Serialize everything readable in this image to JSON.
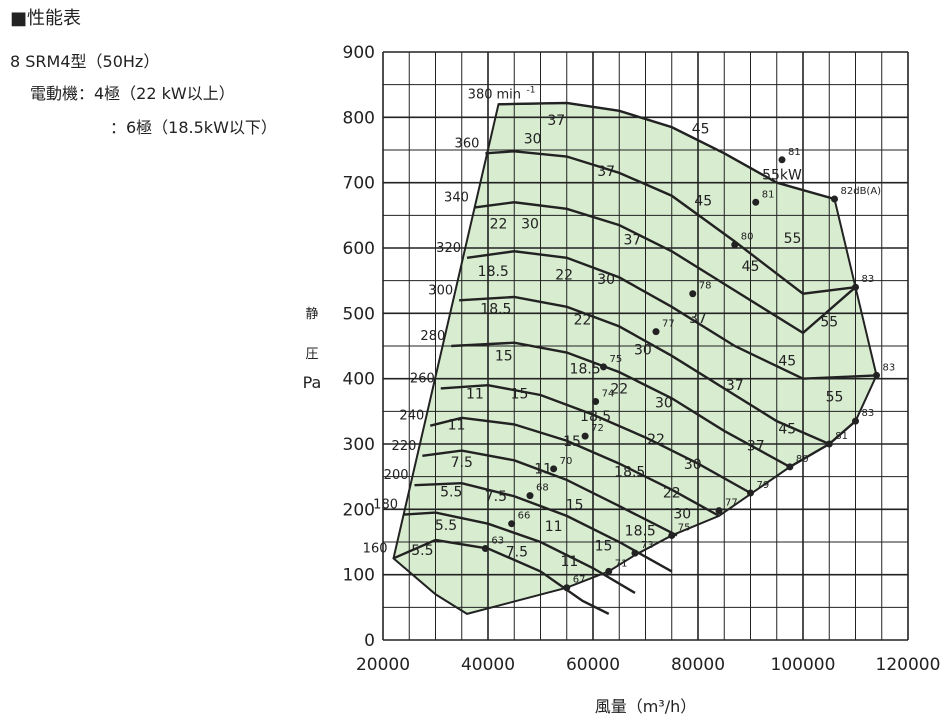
{
  "header": {
    "section": "■性能表",
    "model": "8  SRM4型（50Hz）",
    "motor_label": "電動機：4極（22  kW以上）",
    "motor_label2": "：6極（18.5kW以下）"
  },
  "chart_data": {
    "type": "line",
    "title": "",
    "xlabel": "風量（m³/h）",
    "ylabel_chars": [
      "静",
      "圧",
      "Pa"
    ],
    "xlim": [
      20000,
      120000
    ],
    "ylim": [
      0,
      900
    ],
    "x_ticks": [
      "20000",
      "40000",
      "60000",
      "80000",
      "100000",
      "120000"
    ],
    "y_ticks": [
      "0",
      "100",
      "200",
      "300",
      "400",
      "500",
      "600",
      "700",
      "800",
      "900"
    ],
    "grid": true,
    "fill_color": "#d8ecd0",
    "speed_unit": "min",
    "speed_unit_sup": "-1",
    "speed_curves": [
      {
        "label": "160",
        "points": [
          [
            22000,
            125
          ],
          [
            30000,
            153
          ],
          [
            40000,
            140
          ],
          [
            50000,
            105
          ],
          [
            58000,
            60
          ],
          [
            63000,
            40
          ]
        ]
      },
      {
        "label": "180",
        "points": [
          [
            24000,
            192
          ],
          [
            30000,
            195
          ],
          [
            40000,
            178
          ],
          [
            50000,
            150
          ],
          [
            60000,
            110
          ],
          [
            68000,
            72
          ]
        ]
      },
      {
        "label": "200",
        "points": [
          [
            26000,
            237
          ],
          [
            35000,
            240
          ],
          [
            45000,
            220
          ],
          [
            55000,
            190
          ],
          [
            65000,
            150
          ],
          [
            75000,
            105
          ]
        ]
      },
      {
        "label": "220",
        "points": [
          [
            27500,
            282
          ],
          [
            35000,
            290
          ],
          [
            45000,
            275
          ],
          [
            55000,
            245
          ],
          [
            65000,
            205
          ],
          [
            76000,
            160
          ]
        ]
      },
      {
        "label": "240",
        "points": [
          [
            29000,
            328
          ],
          [
            35000,
            340
          ],
          [
            45000,
            330
          ],
          [
            55000,
            305
          ],
          [
            65000,
            270
          ],
          [
            75000,
            230
          ],
          [
            84000,
            190
          ]
        ]
      },
      {
        "label": "260",
        "points": [
          [
            31000,
            385
          ],
          [
            40000,
            390
          ],
          [
            50000,
            375
          ],
          [
            60000,
            345
          ],
          [
            70000,
            310
          ],
          [
            80000,
            270
          ],
          [
            90000,
            225
          ]
        ]
      },
      {
        "label": "280",
        "points": [
          [
            33000,
            450
          ],
          [
            45000,
            455
          ],
          [
            55000,
            440
          ],
          [
            65000,
            410
          ],
          [
            75000,
            370
          ],
          [
            85000,
            320
          ],
          [
            97500,
            265
          ],
          [
            105000,
            300
          ]
        ]
      },
      {
        "label": "300",
        "points": [
          [
            34500,
            520
          ],
          [
            45000,
            525
          ],
          [
            55000,
            510
          ],
          [
            65000,
            480
          ],
          [
            75000,
            435
          ],
          [
            85000,
            385
          ],
          [
            95000,
            335
          ],
          [
            105000,
            300
          ],
          [
            110000,
            335
          ]
        ]
      },
      {
        "label": "320",
        "points": [
          [
            36000,
            585
          ],
          [
            45000,
            595
          ],
          [
            55000,
            585
          ],
          [
            65000,
            555
          ],
          [
            75000,
            510
          ],
          [
            87000,
            450
          ],
          [
            100000,
            400
          ],
          [
            114000,
            405
          ]
        ]
      },
      {
        "label": "340",
        "points": [
          [
            37500,
            662
          ],
          [
            45000,
            670
          ],
          [
            55000,
            660
          ],
          [
            65000,
            635
          ],
          [
            75000,
            595
          ],
          [
            87000,
            535
          ],
          [
            100000,
            470
          ],
          [
            110000,
            540
          ]
        ]
      },
      {
        "label": "360",
        "points": [
          [
            39500,
            745
          ],
          [
            45000,
            748
          ],
          [
            55000,
            740
          ],
          [
            65000,
            715
          ],
          [
            75000,
            680
          ],
          [
            87000,
            610
          ],
          [
            100000,
            530
          ],
          [
            110000,
            540
          ]
        ]
      },
      {
        "label": "380",
        "points": [
          [
            42000,
            820
          ],
          [
            55000,
            822
          ],
          [
            65000,
            810
          ],
          [
            75000,
            785
          ],
          [
            85000,
            745
          ],
          [
            95000,
            700
          ],
          [
            106000,
            675
          ]
        ]
      }
    ],
    "envelope": [
      [
        22000,
        125
      ],
      [
        42000,
        820
      ],
      [
        55000,
        822
      ],
      [
        65000,
        810
      ],
      [
        75000,
        785
      ],
      [
        85000,
        745
      ],
      [
        95000,
        700
      ],
      [
        106000,
        675
      ],
      [
        110000,
        540
      ],
      [
        114000,
        405
      ],
      [
        110000,
        335
      ],
      [
        105000,
        300
      ],
      [
        97500,
        265
      ],
      [
        84000,
        190
      ],
      [
        75000,
        160
      ],
      [
        68000,
        130
      ],
      [
        63000,
        105
      ],
      [
        55000,
        80
      ],
      [
        36000,
        40
      ],
      [
        30000,
        70
      ]
    ],
    "power_labels": [
      {
        "t": "5.5",
        "x": 27500,
        "y": 130
      },
      {
        "t": "5.5",
        "x": 32000,
        "y": 168
      },
      {
        "t": "5.5",
        "x": 33000,
        "y": 220
      },
      {
        "t": "7.5",
        "x": 35000,
        "y": 265
      },
      {
        "t": "7.5",
        "x": 41500,
        "y": 213
      },
      {
        "t": "7.5",
        "x": 45500,
        "y": 128
      },
      {
        "t": "11",
        "x": 34000,
        "y": 322
      },
      {
        "t": "11",
        "x": 37500,
        "y": 370
      },
      {
        "t": "11",
        "x": 50500,
        "y": 255
      },
      {
        "t": "11",
        "x": 52500,
        "y": 167
      },
      {
        "t": "11",
        "x": 55500,
        "y": 113
      },
      {
        "t": "15",
        "x": 43000,
        "y": 428
      },
      {
        "t": "15",
        "x": 46000,
        "y": 370
      },
      {
        "t": "15",
        "x": 56000,
        "y": 297
      },
      {
        "t": "15",
        "x": 56500,
        "y": 200
      },
      {
        "t": "15",
        "x": 62000,
        "y": 137
      },
      {
        "t": "18.5",
        "x": 41000,
        "y": 557
      },
      {
        "t": "18.5",
        "x": 41500,
        "y": 500
      },
      {
        "t": "18.5",
        "x": 58500,
        "y": 408
      },
      {
        "t": "18.5",
        "x": 60500,
        "y": 335
      },
      {
        "t": "18.5",
        "x": 67000,
        "y": 250
      },
      {
        "t": "18.5",
        "x": 69000,
        "y": 160
      },
      {
        "t": "22",
        "x": 42000,
        "y": 630
      },
      {
        "t": "22",
        "x": 54500,
        "y": 552
      },
      {
        "t": "22",
        "x": 58000,
        "y": 483
      },
      {
        "t": "22",
        "x": 65000,
        "y": 377
      },
      {
        "t": "22",
        "x": 72000,
        "y": 300
      },
      {
        "t": "22",
        "x": 75000,
        "y": 218
      },
      {
        "t": "30",
        "x": 48500,
        "y": 760
      },
      {
        "t": "30",
        "x": 48000,
        "y": 630
      },
      {
        "t": "30",
        "x": 62500,
        "y": 545
      },
      {
        "t": "30",
        "x": 69500,
        "y": 437
      },
      {
        "t": "30",
        "x": 73500,
        "y": 356
      },
      {
        "t": "30",
        "x": 79000,
        "y": 262
      },
      {
        "t": "30",
        "x": 77000,
        "y": 186
      },
      {
        "t": "37",
        "x": 53000,
        "y": 788
      },
      {
        "t": "37",
        "x": 62500,
        "y": 710
      },
      {
        "t": "37",
        "x": 67500,
        "y": 605
      },
      {
        "t": "37",
        "x": 80000,
        "y": 485
      },
      {
        "t": "37",
        "x": 87000,
        "y": 383
      },
      {
        "t": "37",
        "x": 91000,
        "y": 290
      },
      {
        "t": "45",
        "x": 80500,
        "y": 775
      },
      {
        "t": "45",
        "x": 81000,
        "y": 665
      },
      {
        "t": "45",
        "x": 90000,
        "y": 565
      },
      {
        "t": "45",
        "x": 97000,
        "y": 420
      },
      {
        "t": "45",
        "x": 97000,
        "y": 316
      },
      {
        "t": "55kW",
        "x": 96000,
        "y": 705
      },
      {
        "t": "55",
        "x": 98000,
        "y": 608
      },
      {
        "t": "55",
        "x": 105000,
        "y": 480
      },
      {
        "t": "55",
        "x": 106000,
        "y": 365
      }
    ],
    "db_points": [
      {
        "t": "81",
        "x": 96000,
        "y": 735
      },
      {
        "t": "82dB(A)",
        "x": 106000,
        "y": 675
      },
      {
        "t": "81",
        "x": 91000,
        "y": 670
      },
      {
        "t": "80",
        "x": 87000,
        "y": 605
      },
      {
        "t": "78",
        "x": 79000,
        "y": 530
      },
      {
        "t": "77",
        "x": 72000,
        "y": 472
      },
      {
        "t": "75",
        "x": 62000,
        "y": 418
      },
      {
        "t": "74",
        "x": 60500,
        "y": 365
      },
      {
        "t": "72",
        "x": 58500,
        "y": 312
      },
      {
        "t": "70",
        "x": 52500,
        "y": 262
      },
      {
        "t": "68",
        "x": 48000,
        "y": 221
      },
      {
        "t": "66",
        "x": 44500,
        "y": 178
      },
      {
        "t": "63",
        "x": 39500,
        "y": 140
      },
      {
        "t": "67",
        "x": 55000,
        "y": 80
      },
      {
        "t": "71",
        "x": 63000,
        "y": 105
      },
      {
        "t": "73",
        "x": 68000,
        "y": 133
      },
      {
        "t": "75",
        "x": 75000,
        "y": 160
      },
      {
        "t": "77",
        "x": 84000,
        "y": 198
      },
      {
        "t": "79",
        "x": 90000,
        "y": 225
      },
      {
        "t": "80",
        "x": 97500,
        "y": 265
      },
      {
        "t": "81",
        "x": 105000,
        "y": 300
      },
      {
        "t": "83",
        "x": 110000,
        "y": 335
      },
      {
        "t": "83",
        "x": 114000,
        "y": 405
      },
      {
        "t": "83",
        "x": 110000,
        "y": 540
      }
    ]
  }
}
